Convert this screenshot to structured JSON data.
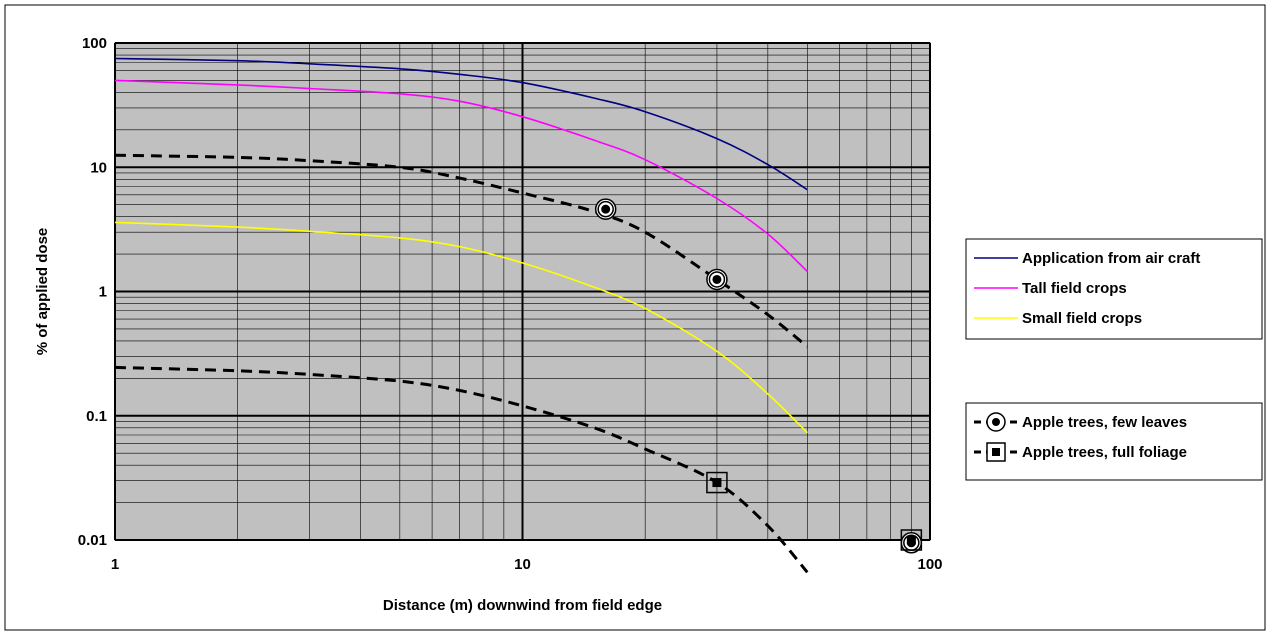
{
  "chart_data": {
    "type": "line",
    "title": "",
    "xlabel": "Distance (m) downwind from field edge",
    "ylabel": "% of applied dose",
    "x_scale": "log",
    "y_scale": "log",
    "xlim": [
      1,
      100
    ],
    "ylim": [
      0.01,
      100
    ],
    "x_ticks": [
      "1",
      "10",
      "100"
    ],
    "y_ticks": [
      "0.01",
      "0.1",
      "1",
      "10",
      "100"
    ],
    "grid": true,
    "plot_background": "#c0c0c0",
    "series": [
      {
        "name": "Application from air craft",
        "color": "#000080",
        "style": "solid",
        "x": [
          1,
          2,
          3,
          5,
          7,
          10,
          15,
          20,
          30,
          40,
          50
        ],
        "y": [
          75,
          72,
          68,
          62,
          56,
          48,
          36,
          28,
          17,
          10.5,
          6.6
        ]
      },
      {
        "name": "Tall field crops",
        "color": "#ff00ff",
        "style": "solid",
        "x": [
          1,
          2,
          3,
          5,
          7,
          10,
          15,
          20,
          30,
          40,
          50
        ],
        "y": [
          50,
          46,
          43,
          39,
          34,
          25.5,
          16.5,
          11.5,
          5.6,
          2.9,
          1.45
        ]
      },
      {
        "name": "Small field crops",
        "color": "#ffff00",
        "style": "solid",
        "x": [
          1,
          2,
          3,
          5,
          7,
          10,
          15,
          20,
          30,
          40,
          50
        ],
        "y": [
          3.6,
          3.3,
          3.05,
          2.7,
          2.3,
          1.7,
          1.08,
          0.73,
          0.33,
          0.15,
          0.073
        ]
      },
      {
        "name": "Apple trees, few leaves",
        "color": "#000000",
        "style": "dashed",
        "marker": "circle",
        "x": [
          1,
          2,
          3,
          5,
          7,
          10,
          15,
          20,
          30,
          40,
          50
        ],
        "y": [
          12.5,
          12,
          11.3,
          10,
          8.2,
          6.2,
          4.4,
          3.0,
          1.25,
          0.65,
          0.36
        ],
        "points": [
          [
            16,
            4.6
          ],
          [
            30,
            1.25
          ],
          [
            90,
            0.0095
          ]
        ]
      },
      {
        "name": "Apple trees, full foliage",
        "color": "#000000",
        "style": "dashed",
        "marker": "square",
        "x": [
          1,
          2,
          3,
          5,
          7,
          10,
          15,
          20,
          30,
          40,
          50
        ],
        "y": [
          0.245,
          0.23,
          0.215,
          0.19,
          0.16,
          0.12,
          0.08,
          0.054,
          0.029,
          0.013,
          0.0055
        ],
        "points": [
          [
            30,
            0.029
          ],
          [
            90,
            0.01
          ]
        ]
      }
    ],
    "legend": {
      "placement": "right",
      "groups": [
        [
          "Application from air craft",
          "Tall field crops",
          "Small field crops"
        ],
        [
          "Apple trees, few leaves",
          "Apple trees, full foliage"
        ]
      ]
    }
  }
}
